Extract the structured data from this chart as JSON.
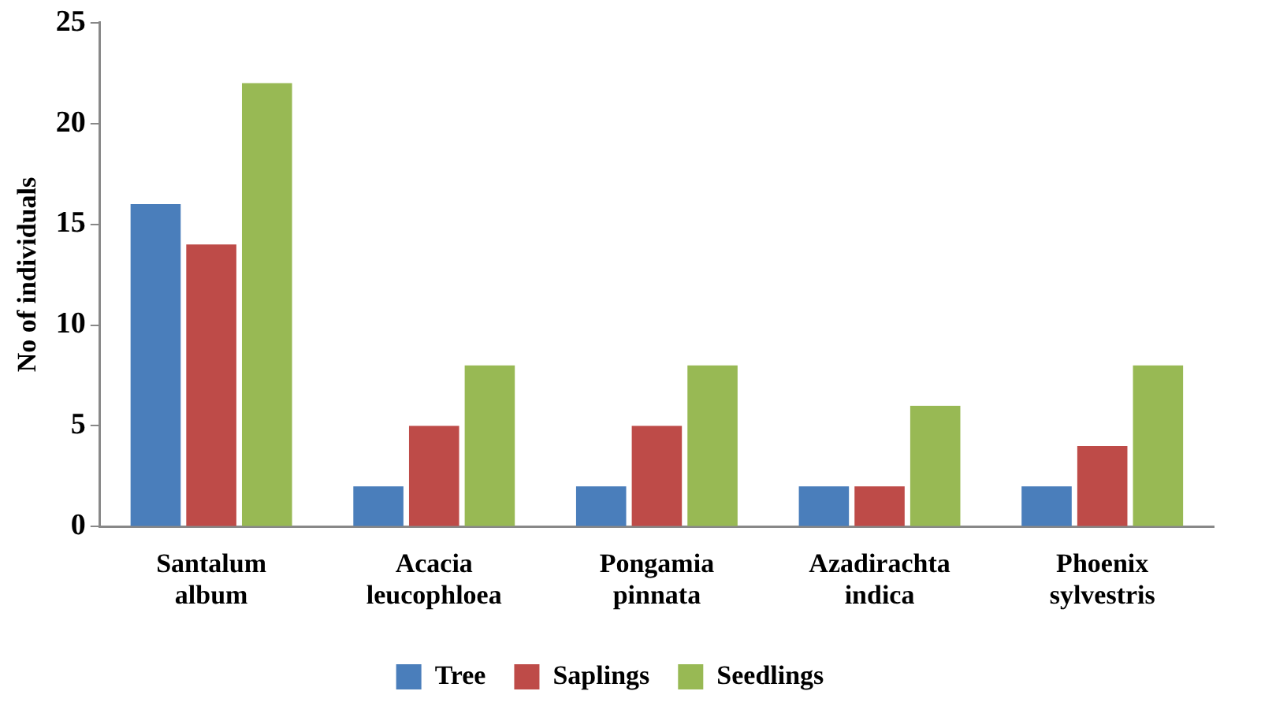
{
  "chart_data": {
    "type": "bar",
    "ylabel": "No of individuals",
    "categories": [
      "Santalum album",
      "Acacia leucophloea",
      "Pongamia pinnata",
      "Azadirachta indica",
      "Phoenix sylvestris"
    ],
    "series": [
      {
        "name": "Tree",
        "color": "#4a7ebb",
        "values": [
          16,
          2,
          2,
          2,
          2
        ]
      },
      {
        "name": "Saplings",
        "color": "#be4b48",
        "values": [
          14,
          5,
          5,
          2,
          4
        ]
      },
      {
        "name": "Seedlings",
        "color": "#98b954",
        "values": [
          22,
          8,
          8,
          6,
          8
        ]
      }
    ],
    "ylim": [
      0,
      25
    ],
    "yticks": [
      0,
      5,
      10,
      15,
      20,
      25
    ],
    "grid": false,
    "legend": "bottom"
  }
}
